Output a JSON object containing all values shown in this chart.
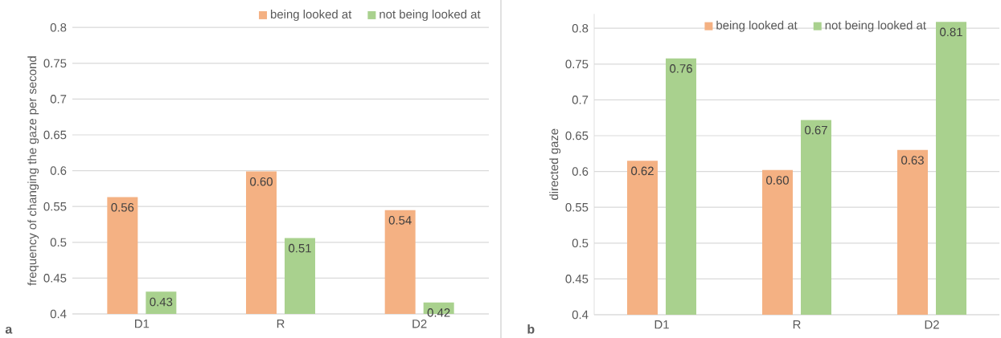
{
  "chart_data": [
    {
      "type": "bar",
      "ylabel": "frequency of changing the gaze per second",
      "annotations": [
        "a"
      ],
      "categories": [
        "D1",
        "R",
        "D2"
      ],
      "series": [
        {
          "name": "being looked at",
          "color": "#f4b183",
          "values": [
            0.563,
            0.599,
            0.545
          ],
          "value_labels": [
            "0.56",
            "0.60",
            "0.54"
          ]
        },
        {
          "name": "not being looked at",
          "color": "#a9d18e",
          "values": [
            0.431,
            0.506,
            0.416
          ],
          "value_labels": [
            "0.43",
            "0.51",
            "0.42"
          ]
        }
      ],
      "ylim": [
        0.4,
        0.8
      ],
      "yticks": [
        0.4,
        0.45,
        0.5,
        0.55,
        0.6,
        0.65,
        0.7,
        0.75,
        0.8
      ],
      "grid": "y",
      "legend": "top right"
    },
    {
      "type": "bar",
      "ylabel": "directed gaze",
      "annotations": [
        "b"
      ],
      "categories": [
        "D1",
        "R",
        "D2"
      ],
      "series": [
        {
          "name": "being looked at",
          "color": "#f4b183",
          "values": [
            0.615,
            0.602,
            0.63
          ],
          "value_labels": [
            "0.62",
            "0.60",
            "0.63"
          ]
        },
        {
          "name": "not being looked at",
          "color": "#a9d18e",
          "values": [
            0.758,
            0.672,
            0.809
          ],
          "value_labels": [
            "0.76",
            "0.67",
            "0.81"
          ]
        }
      ],
      "ylim": [
        0.4,
        0.82
      ],
      "yticks": [
        0.4,
        0.45,
        0.5,
        0.55,
        0.6,
        0.65,
        0.7,
        0.75,
        0.8
      ],
      "grid": "y",
      "legend": "top"
    }
  ]
}
